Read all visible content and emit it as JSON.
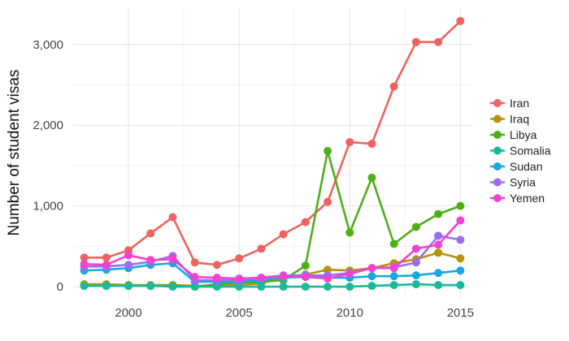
{
  "chart_data": {
    "type": "line",
    "title": "",
    "xlabel": "",
    "ylabel": "Number of student visas",
    "xlim": [
      1997.5,
      2015.5
    ],
    "ylim": [
      -150,
      3450
    ],
    "x_ticks": [
      2000,
      2005,
      2010,
      2015
    ],
    "x_tick_labels": [
      "2000",
      "2005",
      "2010",
      "2015"
    ],
    "y_ticks": [
      0,
      1000,
      2000,
      3000
    ],
    "y_tick_labels": [
      "0",
      "1,000",
      "2,000",
      "3,000"
    ],
    "grid": true,
    "legend_position": "right",
    "x": [
      1998,
      1999,
      2000,
      2001,
      2002,
      2003,
      2004,
      2005,
      2006,
      2007,
      2008,
      2009,
      2010,
      2011,
      2012,
      2013,
      2014,
      2015
    ],
    "series": [
      {
        "name": "Iran",
        "color": "#ec6360",
        "values": [
          360,
          360,
          450,
          660,
          860,
          300,
          270,
          350,
          470,
          650,
          800,
          1050,
          1790,
          1770,
          2480,
          3030,
          3030,
          3290
        ]
      },
      {
        "name": "Iraq",
        "color": "#b89111",
        "values": [
          30,
          30,
          20,
          20,
          20,
          10,
          10,
          20,
          40,
          120,
          150,
          210,
          200,
          230,
          290,
          340,
          420,
          350
        ]
      },
      {
        "name": "Libya",
        "color": "#4fae18",
        "values": [
          10,
          10,
          10,
          10,
          10,
          0,
          30,
          50,
          60,
          80,
          260,
          1680,
          670,
          1350,
          530,
          740,
          900,
          1000
        ]
      },
      {
        "name": "Somalia",
        "color": "#1ab99a",
        "values": [
          10,
          10,
          10,
          10,
          0,
          0,
          0,
          0,
          0,
          0,
          0,
          0,
          0,
          10,
          20,
          30,
          20,
          20
        ]
      },
      {
        "name": "Sudan",
        "color": "#1ba7e2",
        "values": [
          200,
          210,
          230,
          270,
          290,
          60,
          60,
          60,
          80,
          110,
          120,
          110,
          110,
          130,
          130,
          140,
          170,
          200
        ]
      },
      {
        "name": "Syria",
        "color": "#9b6cf1",
        "values": [
          250,
          250,
          270,
          310,
          380,
          80,
          80,
          80,
          110,
          140,
          140,
          140,
          170,
          230,
          240,
          300,
          630,
          580
        ]
      },
      {
        "name": "Yemen",
        "color": "#f042d1",
        "values": [
          280,
          270,
          390,
          330,
          340,
          120,
          110,
          100,
          110,
          130,
          120,
          100,
          160,
          230,
          230,
          470,
          520,
          820
        ]
      }
    ]
  }
}
